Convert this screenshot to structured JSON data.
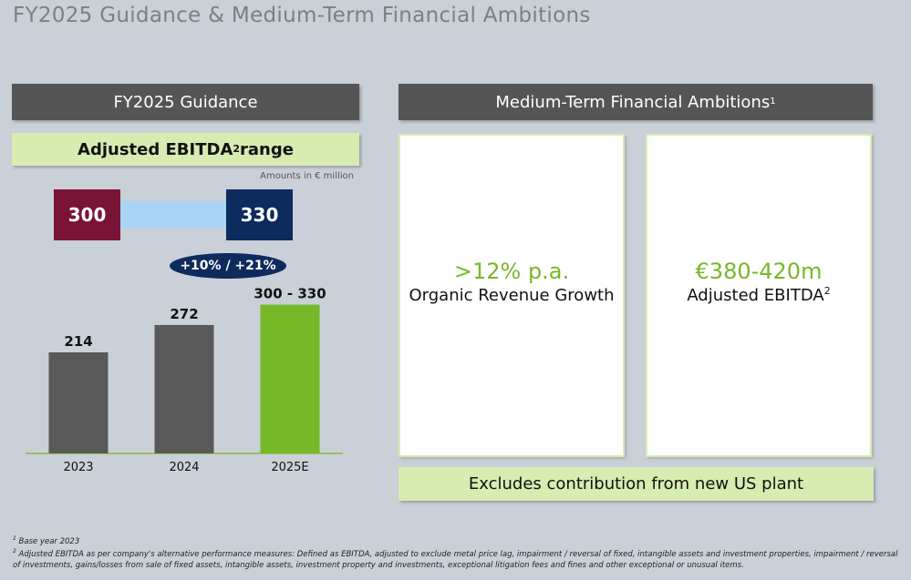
{
  "page": {
    "title": "FY2025 Guidance & Medium-Term Financial Ambitions"
  },
  "left": {
    "header": "FY2025 Guidance",
    "subheader": "Adjusted EBITDA",
    "subheader_sup": "2",
    "subheader_suffix": " range",
    "amounts_note": "Amounts in € million",
    "range_low": "300",
    "range_high": "330",
    "growth_label": "+10% / +21%"
  },
  "right": {
    "header": "Medium-Term Financial Ambitions",
    "header_sup": "1",
    "card1": {
      "value": ">12% p.a.",
      "label": "Organic Revenue Growth"
    },
    "card2": {
      "value": "€380-420m",
      "label": "Adjusted EBITDA",
      "label_sup": "2"
    },
    "exclusion_note": "Excludes contribution from new US plant"
  },
  "footnotes": [
    {
      "marker": "1",
      "text": "Base year 2023"
    },
    {
      "marker": "2",
      "text": "Adjusted EBITDA as per company's alternative performance measures: Defined as EBITDA, adjusted to exclude metal price lag, impairment / reversal of fixed, intangible assets and investment properties, impairment / reversal of investments, gains/losses from sale of fixed assets, intangible assets, investment property and investments, exceptional litigation fees and fines and other exceptional or unusual items."
    }
  ],
  "colors": {
    "bar_actual": "#595959",
    "bar_estimate": "#77b829",
    "accent_green": "#77b829",
    "low_box": "#7a1436",
    "high_box": "#0d2b5c",
    "range_fill": "#a9d4f5",
    "header_bg": "#555555",
    "light_green": "#d6ecb1"
  },
  "chart_data": {
    "type": "bar",
    "title": "Adjusted EBITDA",
    "unit": "€ million",
    "categories": [
      "2023",
      "2024",
      "2025E"
    ],
    "values": [
      214,
      272,
      315
    ],
    "data_labels": [
      "214",
      "272",
      "300 - 330"
    ],
    "ylim": [
      0,
      350
    ],
    "xlabel": "",
    "ylabel": ""
  }
}
